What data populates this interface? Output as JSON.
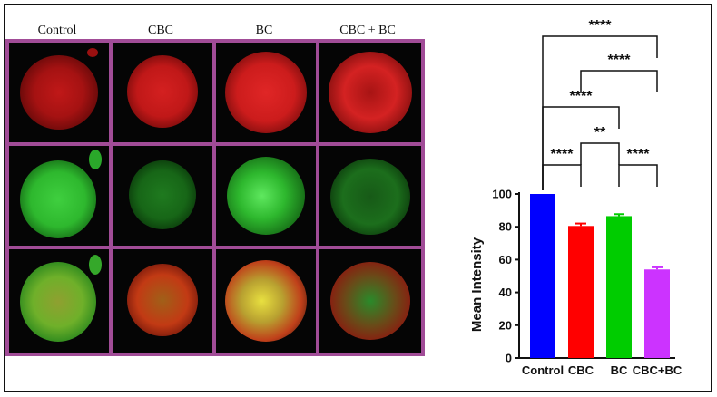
{
  "panel": {
    "column_labels": [
      "Control",
      "CBC",
      "BC",
      "CBC + BC"
    ],
    "rows": [
      "red",
      "green",
      "merge"
    ],
    "border_color": "#a14c97",
    "row_colors": {
      "red": "#d41e1e",
      "green": "#2eb82e"
    }
  },
  "chart_data": {
    "type": "bar",
    "categories": [
      "Control",
      "CBC",
      "BC",
      "CBC+BC"
    ],
    "values": [
      100,
      80.5,
      86.5,
      54
    ],
    "errors": [
      0,
      1.5,
      1.2,
      1.3
    ],
    "colors": [
      "#0000ff",
      "#ff0000",
      "#00cc00",
      "#cc33ff"
    ],
    "title": "",
    "xlabel": "",
    "ylabel": "Mean Intensity",
    "ylim": [
      0,
      100
    ],
    "yticks": [
      0,
      20,
      40,
      60,
      80,
      100
    ],
    "grid": false,
    "legend": "none",
    "significance": [
      {
        "from": 0,
        "to": 1,
        "label": "****"
      },
      {
        "from": 2,
        "to": 3,
        "label": "****"
      },
      {
        "from": 1,
        "to": 2,
        "label": "**"
      },
      {
        "from": 0,
        "to": 2,
        "label": "****"
      },
      {
        "from": 1,
        "to": 3,
        "label": "****"
      },
      {
        "from": 0,
        "to": 3,
        "label": "****"
      }
    ]
  }
}
